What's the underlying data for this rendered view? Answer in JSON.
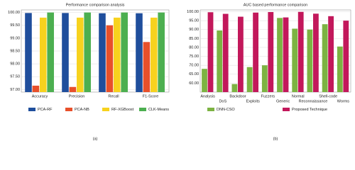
{
  "chart_data": [
    {
      "type": "bar",
      "title": "Performance comparison analysis",
      "caption": "(a)",
      "categories": [
        "Accuracy",
        "Precision",
        "Recall",
        "F1-Score"
      ],
      "series": [
        {
          "name": "PCA-RF",
          "color": "#1f4e9c",
          "values": [
            99.98,
            99.98,
            99.97,
            99.97
          ]
        },
        {
          "name": "PCA-NB",
          "color": "#e8502a",
          "values": [
            97.15,
            97.1,
            99.5,
            98.85
          ]
        },
        {
          "name": "RF-XGBoost",
          "color": "#f7d21e",
          "values": [
            99.8,
            99.8,
            99.8,
            99.8
          ]
        },
        {
          "name": "CLK-Means",
          "color": "#4caf50",
          "values": [
            100.0,
            100.0,
            100.0,
            100.0
          ]
        }
      ],
      "ylim": [
        96.9,
        100.1
      ],
      "yticks": [
        {
          "value": 97,
          "label": "97.00"
        },
        {
          "value": 97.5,
          "label": "97.50"
        },
        {
          "value": 98,
          "label": "98.00"
        },
        {
          "value": 98.5,
          "label": "98.50"
        },
        {
          "value": 99,
          "label": "99.00"
        },
        {
          "value": 99.5,
          "label": "99.50"
        },
        {
          "value": 100,
          "label": "100.00"
        }
      ],
      "grid": true
    },
    {
      "type": "bar",
      "title": "AUC based performance comparison",
      "caption": "(b)",
      "categories": [
        "Analysis",
        "DoS",
        "Backdoor",
        "Exploits",
        "Fuzzers",
        "Generic",
        "Normal",
        "Reconnaissance",
        "Shell-code",
        "Worms"
      ],
      "series": [
        {
          "name": "DNN-CSO",
          "color": "#7cb342",
          "values": [
            68,
            89.5,
            59.5,
            69,
            70,
            96.5,
            90.5,
            90,
            93,
            80.5
          ]
        },
        {
          "name": "Proposed Technique",
          "color": "#c2185b",
          "values": [
            99.7,
            98.8,
            97.2,
            99.5,
            99.8,
            96.8,
            99.9,
            98.9,
            97.5,
            95
          ]
        }
      ],
      "ylim": [
        55,
        101
      ],
      "yticks": [
        {
          "value": 60,
          "label": "60.00"
        },
        {
          "value": 65,
          "label": "65.00"
        },
        {
          "value": 70,
          "label": "70.00"
        },
        {
          "value": 75,
          "label": "75.00"
        },
        {
          "value": 80,
          "label": "80.00"
        },
        {
          "value": 85,
          "label": "85.00"
        },
        {
          "value": 90,
          "label": "90.00"
        },
        {
          "value": 95,
          "label": "95.00"
        },
        {
          "value": 100,
          "label": "100.00"
        }
      ],
      "grid": true
    }
  ]
}
